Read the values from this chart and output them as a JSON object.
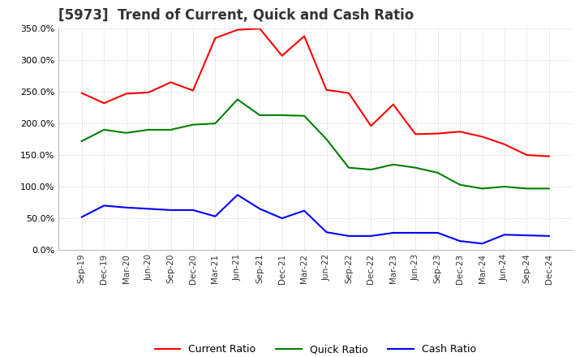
{
  "title": "[5973]  Trend of Current, Quick and Cash Ratio",
  "x_labels": [
    "Sep-19",
    "Dec-19",
    "Mar-20",
    "Jun-20",
    "Sep-20",
    "Dec-20",
    "Mar-21",
    "Jun-21",
    "Sep-21",
    "Dec-21",
    "Mar-22",
    "Jun-22",
    "Sep-22",
    "Dec-22",
    "Mar-23",
    "Jun-23",
    "Sep-23",
    "Dec-23",
    "Mar-24",
    "Jun-24",
    "Sep-24",
    "Dec-24"
  ],
  "current_ratio": [
    248,
    232,
    247,
    249,
    265,
    252,
    335,
    348,
    350,
    307,
    338,
    253,
    248,
    196,
    230,
    183,
    184,
    187,
    179,
    167,
    150,
    148
  ],
  "quick_ratio": [
    172,
    190,
    185,
    190,
    190,
    198,
    200,
    238,
    213,
    213,
    212,
    175,
    130,
    127,
    135,
    130,
    122,
    103,
    97,
    100,
    97,
    97
  ],
  "cash_ratio": [
    52,
    70,
    67,
    65,
    63,
    63,
    53,
    87,
    65,
    50,
    62,
    28,
    22,
    22,
    27,
    27,
    27,
    14,
    10,
    24,
    23,
    22
  ],
  "current_color": "#ff0000",
  "quick_color": "#008000",
  "cash_color": "#0000ff",
  "ylim": [
    0,
    350
  ],
  "yticks": [
    0,
    50,
    100,
    150,
    200,
    250,
    300,
    350
  ],
  "background_color": "#ffffff",
  "grid_color": "#cccccc",
  "title_fontsize": 12
}
